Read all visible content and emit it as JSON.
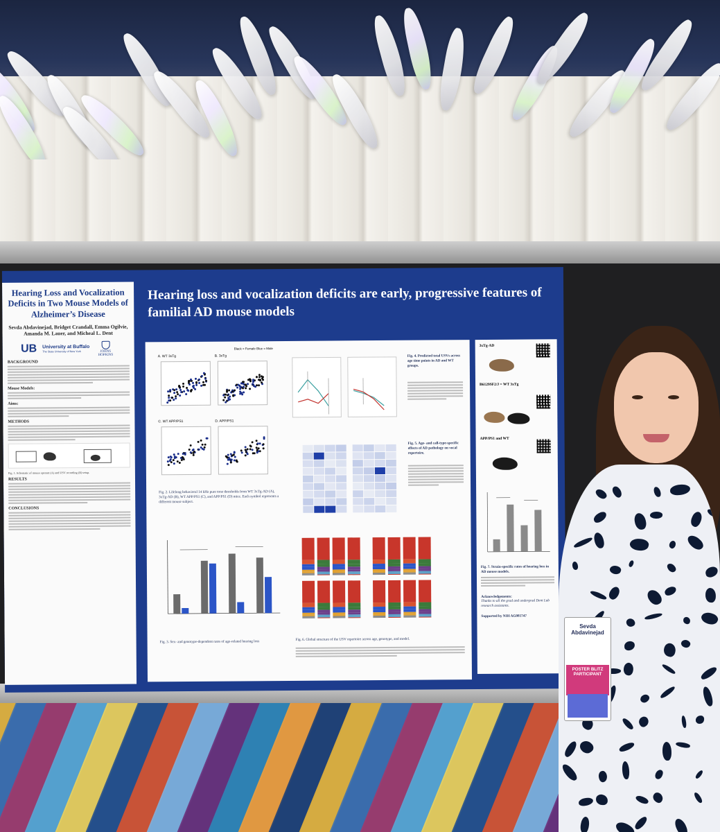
{
  "poster": {
    "main_title": "Hearing loss and vocalization deficits are early, progressive features of familial AD mouse models",
    "left_title": "Hearing Loss and Vocalization Deficits in Two Mouse Models of Alzheimer’s Disease",
    "authors": "Sevda Abdavinejad, Bridget Crandall, Emma Ogilvie, Amanda M. Lauer, and Micheal L. Dent",
    "logo_ub": "UB",
    "logo_ub_name": "University at Buffalo",
    "logo_ub_sub": "The State University of New York",
    "logo_jh": "JOHNS HOPKINS",
    "sections": {
      "background": "BACKGROUND",
      "mouse_models": "Mouse Models:",
      "aims": "Aims:",
      "methods": "METHODS",
      "results": "RESULTS",
      "conclusions": "CONCLUSIONS"
    },
    "figure_captions": {
      "fig1": "Fig. 1. Schematic of mouse operant (A) and USV recording (B) setup.",
      "fig2": "Fig. 2. Lifelong behavioral 14 kHz pure tone thresholds from WT 3xTg-AD (A), 3xTg-AD (B), WT APP/PS1 (C), and APP/PS1 (D) mice. Each symbol represents a different mouse subject.",
      "fig3": "Fig. 3. Sex- and genotype-dependent rates of age-related hearing loss",
      "fig4": "Fig. 4. Predicted total USVs across age time points in AD and WT groups.",
      "fig5": "Fig. 5. Age- and call-type-specific effects of AD pathology on vocal repertoire.",
      "fig6": "Fig. 6. Global structure of the USV repertoire across age, genotype, and model.",
      "fig7": "Fig. 7. Strain-specific rates of hearing loss in AD mouse models."
    },
    "panel_labels": {
      "a": "A. WT 3xTg",
      "b": "B. 3xTg",
      "c": "C. WT APP/PS1",
      "d": "D. APP/PS1",
      "legend": "Black = Female  Blue = Male"
    },
    "strains": {
      "s1": "3xTg-AD",
      "s2": "B6129SF2/J = WT 3xTg",
      "s3": "APP/PS1 and WT"
    },
    "acknowledgements_title": "Acknowledgements:",
    "acknowledgements": "Thanks to all the grad and undergrad Dent Lab research assistants.",
    "funding": "Supported by NIH AG081747"
  },
  "badge": {
    "name": "Sevda Abdavinejad",
    "ribbon": "POSTER BLITZ PARTICIPANT"
  },
  "colors": {
    "poster_blue": "#1d3c8d",
    "title_text": "#ffffff",
    "panel_bg": "#fbfbfb",
    "accent_red": "#c2332e",
    "accent_blue": "#2b55c7"
  }
}
